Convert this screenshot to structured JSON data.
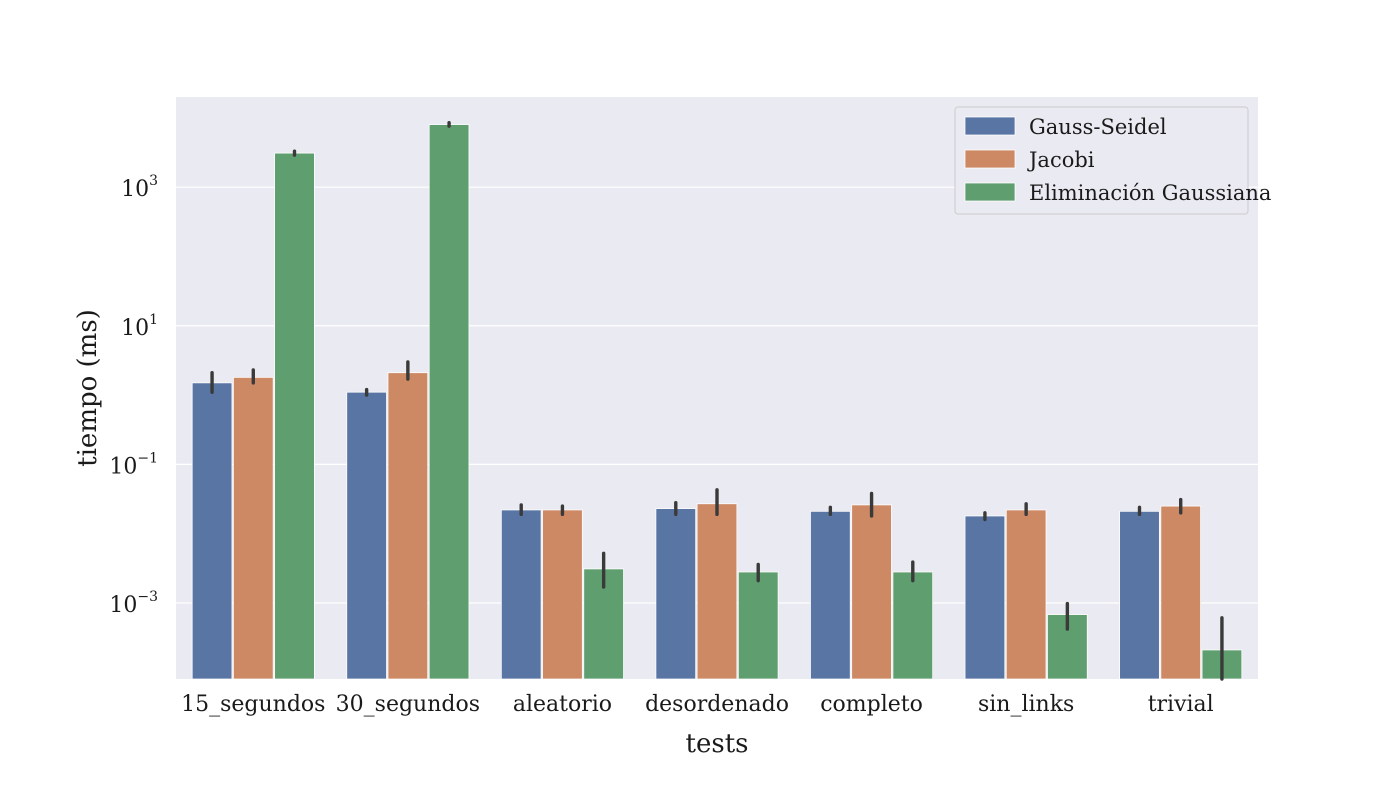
{
  "chart_data": {
    "type": "bar",
    "title": "",
    "xlabel": "tests",
    "ylabel": "tiempo (ms)",
    "yscale": "log",
    "ylim": [
      8e-05,
      20000
    ],
    "yticks": [
      {
        "base": "10",
        "exp": "−3",
        "value": 0.001
      },
      {
        "base": "10",
        "exp": "−1",
        "value": 0.1
      },
      {
        "base": "10",
        "exp": "1",
        "value": 10
      },
      {
        "base": "10",
        "exp": "3",
        "value": 1000
      }
    ],
    "grid": true,
    "legend_position": "top-right",
    "categories": [
      "15_segundos",
      "30_segundos",
      "aleatorio",
      "desordenado",
      "completo",
      "sin_links",
      "trivial"
    ],
    "series": [
      {
        "name": "Gauss-Seidel",
        "color": "#5875a4",
        "values": [
          1.5,
          1.1,
          0.022,
          0.023,
          0.021,
          0.018,
          0.021
        ],
        "err_low": [
          1.1,
          1.0,
          0.019,
          0.019,
          0.019,
          0.016,
          0.019
        ],
        "err_high": [
          2.1,
          1.2,
          0.026,
          0.028,
          0.024,
          0.02,
          0.024
        ]
      },
      {
        "name": "Jacobi",
        "color": "#cc8963",
        "values": [
          1.8,
          2.1,
          0.022,
          0.027,
          0.026,
          0.022,
          0.025
        ],
        "err_low": [
          1.5,
          1.7,
          0.019,
          0.019,
          0.018,
          0.019,
          0.02
        ],
        "err_high": [
          2.3,
          3.0,
          0.025,
          0.043,
          0.038,
          0.027,
          0.031
        ]
      },
      {
        "name": "Eliminación Gaussiana",
        "color": "#5f9e6e",
        "values": [
          3100,
          8000,
          0.0031,
          0.0028,
          0.0028,
          0.00068,
          0.00021
        ],
        "err_low": [
          2900,
          7600,
          0.0017,
          0.0021,
          0.0021,
          0.00042,
          8e-05
        ],
        "err_high": [
          3300,
          8500,
          0.0052,
          0.0036,
          0.0039,
          0.00098,
          0.00061
        ]
      }
    ]
  }
}
